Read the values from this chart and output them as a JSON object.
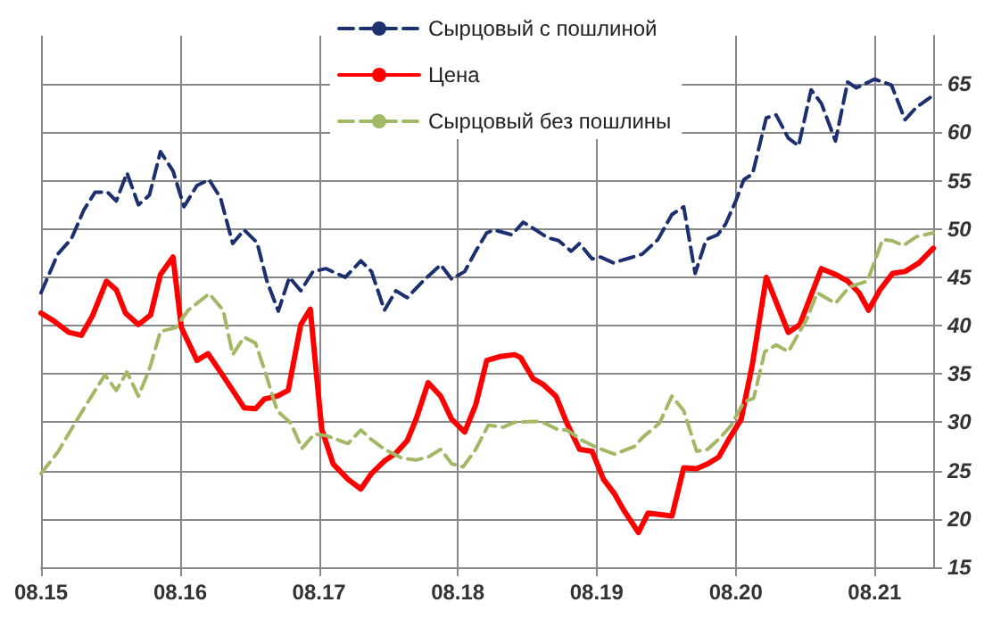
{
  "chart_data": {
    "type": "line",
    "marker": "none",
    "grid": true,
    "legend": "top",
    "xlim": [
      "2015-08-01",
      "2022-01-02"
    ],
    "ylim": [
      15,
      70
    ],
    "xticks": [
      {
        "value": "2015-08",
        "label": "08.15"
      },
      {
        "value": "2016-08",
        "label": "08.16"
      },
      {
        "value": "2017-08",
        "label": "08.17"
      },
      {
        "value": "2018-08",
        "label": "08.18"
      },
      {
        "value": "2019-08",
        "label": "08.19"
      },
      {
        "value": "2020-08",
        "label": "08.20"
      },
      {
        "value": "2021-08",
        "label": "08.21"
      }
    ],
    "yticks": [
      15,
      20,
      25,
      30,
      35,
      40,
      45,
      50,
      55,
      60,
      65
    ],
    "series": [
      {
        "name": "Сырцовый с пошлиной",
        "color": "#1c2f6e",
        "line_style": "dashed",
        "x": [
          "2015-08-01",
          "2015-09-14",
          "2015-10-20",
          "2015-11-22",
          "2015-12-21",
          "2016-01-23",
          "2016-02-15",
          "2016-03-14",
          "2016-04-13",
          "2016-05-12",
          "2016-06-10",
          "2016-07-13",
          "2016-08-11",
          "2016-09-14",
          "2016-10-16",
          "2016-11-15",
          "2016-12-17",
          "2017-01-16",
          "2017-02-19",
          "2017-03-17",
          "2017-04-16",
          "2017-05-15",
          "2017-06-14",
          "2017-07-16",
          "2017-08-19",
          "2017-10-09",
          "2017-11-19",
          "2017-12-17",
          "2018-01-20",
          "2018-02-19",
          "2018-03-21",
          "2018-05-01",
          "2018-06-17",
          "2018-07-16",
          "2018-08-19",
          "2018-09-17",
          "2018-10-16",
          "2018-11-04",
          "2018-12-21",
          "2019-01-20",
          "2019-02-22",
          "2019-03-25",
          "2019-04-23",
          "2019-05-26",
          "2019-06-17",
          "2019-07-20",
          "2019-08-11",
          "2019-09-14",
          "2019-10-27",
          "2019-11-29",
          "2020-01-09",
          "2020-02-15",
          "2020-03-17",
          "2020-04-16",
          "2020-05-15",
          "2020-06-14",
          "2020-07-05",
          "2020-08-01",
          "2020-08-22",
          "2020-09-14",
          "2020-10-20",
          "2020-11-15",
          "2020-12-17",
          "2021-01-13",
          "2021-02-15",
          "2021-03-14",
          "2021-04-20",
          "2021-05-22",
          "2021-06-14",
          "2021-08-01",
          "2021-09-14",
          "2021-10-20",
          "2021-11-19",
          "2021-12-25"
        ],
        "values": [
          43.4,
          47.4,
          49.0,
          52.0,
          53.8,
          53.8,
          52.9,
          55.8,
          52.5,
          53.5,
          58.0,
          56.0,
          52.3,
          54.5,
          55.1,
          53.2,
          48.5,
          49.9,
          48.6,
          44.6,
          41.5,
          45.0,
          43.6,
          45.6,
          45.9,
          45.0,
          46.7,
          45.6,
          41.6,
          43.6,
          42.9,
          44.6,
          46.3,
          44.8,
          45.6,
          47.7,
          49.6,
          49.9,
          49.4,
          50.7,
          49.9,
          49.1,
          48.8,
          47.7,
          48.5,
          46.9,
          47.1,
          46.5,
          47.0,
          47.4,
          48.9,
          51.5,
          52.3,
          45.4,
          48.9,
          49.4,
          50.5,
          52.9,
          55.1,
          55.7,
          61.5,
          61.8,
          59.4,
          58.6,
          64.4,
          63.0,
          59.1,
          65.2,
          64.6,
          65.5,
          64.9,
          61.3,
          62.6,
          63.6
        ]
      },
      {
        "name": "Цена",
        "color": "#ff0000",
        "line_style": "solid",
        "x": [
          "2015-08-01",
          "2015-09-03",
          "2015-10-13",
          "2015-11-15",
          "2015-12-14",
          "2016-01-20",
          "2016-02-15",
          "2016-03-10",
          "2016-04-13",
          "2016-05-15",
          "2016-06-10",
          "2016-07-13",
          "2016-08-04",
          "2016-09-14",
          "2016-10-13",
          "2016-11-15",
          "2016-12-17",
          "2017-01-16",
          "2017-02-15",
          "2017-03-10",
          "2017-04-13",
          "2017-05-12",
          "2017-06-14",
          "2017-07-09",
          "2017-08-08",
          "2017-09-07",
          "2017-10-16",
          "2017-11-19",
          "2017-12-17",
          "2018-01-20",
          "2018-02-19",
          "2018-03-21",
          "2018-04-13",
          "2018-05-15",
          "2018-06-17",
          "2018-07-16",
          "2018-08-19",
          "2018-09-17",
          "2018-10-16",
          "2018-11-19",
          "2018-12-28",
          "2019-01-13",
          "2019-02-15",
          "2019-03-14",
          "2019-04-16",
          "2019-05-15",
          "2019-06-17",
          "2019-07-20",
          "2019-08-19",
          "2019-09-17",
          "2019-10-13",
          "2019-11-19",
          "2019-12-14",
          "2020-02-15",
          "2020-03-17",
          "2020-04-20",
          "2020-05-19",
          "2020-06-17",
          "2020-07-16",
          "2020-08-15",
          "2020-09-14",
          "2020-10-20",
          "2020-12-17",
          "2021-01-16",
          "2021-03-14",
          "2021-04-20",
          "2021-05-22",
          "2021-06-21",
          "2021-07-16",
          "2021-08-15",
          "2021-09-17",
          "2021-10-20",
          "2021-11-26",
          "2022-01-02"
        ],
        "values": [
          41.3,
          40.5,
          39.3,
          39.0,
          41.0,
          44.6,
          43.7,
          41.3,
          40.1,
          41.1,
          45.3,
          47.1,
          39.8,
          36.4,
          37.1,
          35.2,
          33.3,
          31.5,
          31.4,
          32.4,
          32.7,
          33.3,
          40.1,
          41.7,
          29.3,
          25.7,
          24.1,
          23.1,
          24.7,
          26.0,
          26.8,
          28.1,
          30.3,
          34.1,
          32.7,
          30.3,
          29.0,
          31.8,
          36.4,
          36.8,
          37.0,
          36.7,
          34.5,
          33.9,
          32.7,
          29.9,
          27.2,
          27.0,
          24.1,
          22.6,
          20.8,
          18.6,
          20.6,
          20.3,
          25.3,
          25.2,
          25.7,
          26.4,
          28.4,
          30.3,
          36.1,
          45.0,
          39.3,
          40.1,
          45.9,
          45.3,
          44.6,
          43.4,
          41.6,
          43.7,
          45.4,
          45.6,
          46.5,
          48.0
        ]
      },
      {
        "name": "Сырцовый без пошлины",
        "color": "#a3b865",
        "line_style": "dashed",
        "x": [
          "2015-08-01",
          "2015-09-14",
          "2015-10-20",
          "2015-12-07",
          "2016-01-16",
          "2016-02-15",
          "2016-03-14",
          "2016-04-13",
          "2016-05-12",
          "2016-06-10",
          "2016-07-20",
          "2016-08-22",
          "2016-10-16",
          "2016-11-22",
          "2016-12-17",
          "2017-01-16",
          "2017-02-15",
          "2017-03-10",
          "2017-04-13",
          "2017-05-19",
          "2017-06-17",
          "2017-07-20",
          "2017-08-22",
          "2017-10-16",
          "2017-11-19",
          "2017-12-17",
          "2018-01-20",
          "2018-03-07",
          "2018-04-13",
          "2018-05-15",
          "2018-06-17",
          "2018-07-16",
          "2018-08-15",
          "2018-09-17",
          "2018-10-20",
          "2018-11-29",
          "2018-12-28",
          "2019-03-07",
          "2019-04-23",
          "2019-05-15",
          "2019-06-25",
          "2019-08-01",
          "2019-09-17",
          "2019-11-08",
          "2019-11-29",
          "2020-01-13",
          "2020-02-15",
          "2020-03-17",
          "2020-04-20",
          "2020-05-19",
          "2020-06-21",
          "2020-07-20",
          "2020-08-22",
          "2020-09-17",
          "2020-10-16",
          "2020-11-15",
          "2020-12-17",
          "2021-02-04",
          "2021-03-03",
          "2021-04-20",
          "2021-05-26",
          "2021-07-13",
          "2021-08-22",
          "2021-09-14",
          "2021-10-16",
          "2021-11-19",
          "2022-01-02"
        ],
        "values": [
          24.7,
          26.9,
          29.3,
          32.4,
          34.9,
          33.3,
          35.2,
          32.7,
          35.5,
          39.4,
          39.8,
          41.6,
          43.3,
          41.6,
          37.0,
          38.8,
          38.2,
          35.5,
          31.2,
          29.9,
          27.3,
          28.8,
          28.6,
          27.8,
          29.2,
          28.2,
          27.2,
          26.3,
          26.1,
          26.4,
          27.2,
          25.7,
          25.4,
          27.2,
          29.7,
          29.5,
          30.0,
          30.1,
          29.2,
          29.2,
          28.1,
          27.4,
          26.7,
          27.5,
          28.4,
          29.9,
          32.7,
          31.2,
          27.0,
          27.2,
          28.4,
          29.7,
          32.1,
          32.5,
          37.3,
          38.0,
          37.3,
          40.7,
          43.4,
          42.3,
          44.0,
          44.6,
          48.9,
          48.8,
          48.3,
          49.2,
          49.6
        ]
      }
    ]
  }
}
